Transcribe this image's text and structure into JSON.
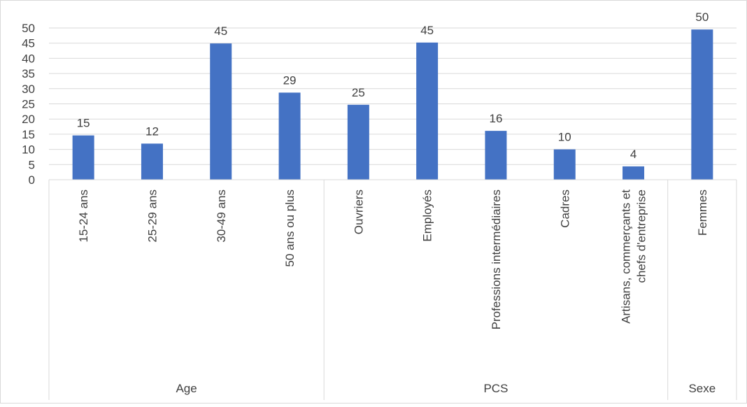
{
  "chart_data": {
    "type": "bar",
    "title": "",
    "ylim": [
      0,
      50
    ],
    "yticks": [
      0,
      5,
      10,
      15,
      20,
      25,
      30,
      35,
      40,
      45,
      50
    ],
    "grid": true,
    "legend": "none",
    "bar_color": "#4472C4",
    "categories": [
      "15-24 ans",
      "25-29 ans",
      "30-49 ans",
      "50 ans ou plus",
      "Ouvriers",
      "Employés",
      "Professions intermédiaires",
      "Cadres",
      "Artisans, commerçants et chefs d'entreprise",
      "Femmes"
    ],
    "category_lines": [
      [
        "15-24 ans"
      ],
      [
        "25-29 ans"
      ],
      [
        "30-49 ans"
      ],
      [
        "50 ans ou plus"
      ],
      [
        "Ouvriers"
      ],
      [
        "Employés"
      ],
      [
        "Professions intermédiaires"
      ],
      [
        "Cadres"
      ],
      [
        "Artisans, commerçants et",
        "chefs d'entreprise"
      ],
      [
        "Femmes"
      ]
    ],
    "values": [
      14.6,
      11.9,
      44.9,
      28.7,
      24.7,
      45.2,
      16.1,
      10.0,
      4.4,
      49.5
    ],
    "data_labels": [
      "15",
      "12",
      "45",
      "29",
      "25",
      "45",
      "16",
      "10",
      "4",
      "50"
    ],
    "groups": [
      {
        "name": "Age",
        "start": 0,
        "count": 4
      },
      {
        "name": "PCS",
        "start": 4,
        "count": 5
      },
      {
        "name": "Sexe",
        "start": 9,
        "count": 1
      }
    ]
  }
}
